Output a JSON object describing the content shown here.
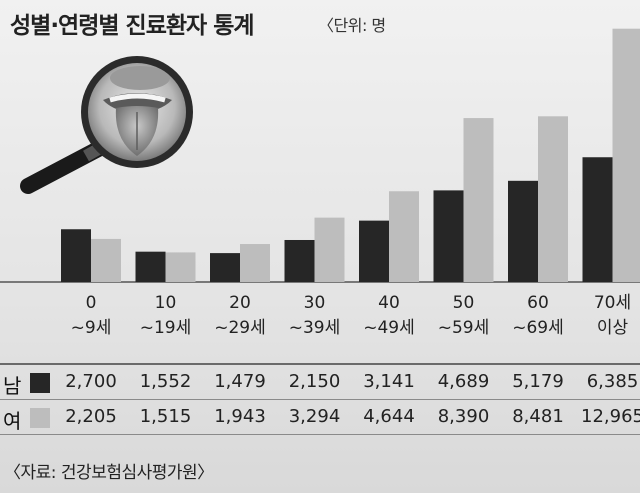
{
  "header": {
    "title": "성별·연령별 진료환자 통계",
    "unit": "〈단위: 명"
  },
  "chart_data": {
    "type": "bar",
    "categories": [
      [
        "0",
        "~9세"
      ],
      [
        "10",
        "~19세"
      ],
      [
        "20",
        "~29세"
      ],
      [
        "30",
        "~39세"
      ],
      [
        "40",
        "~49세"
      ],
      [
        "50",
        "~59세"
      ],
      [
        "60",
        "~69세"
      ],
      [
        "70세",
        "이상"
      ]
    ],
    "series": [
      {
        "name": "남",
        "color": "#262626",
        "values": [
          2700,
          1552,
          1479,
          2150,
          3141,
          4689,
          5179,
          6385
        ]
      },
      {
        "name": "여",
        "color": "#bdbdbd",
        "values": [
          2205,
          1515,
          1943,
          3294,
          4644,
          8390,
          8481,
          12965
        ]
      }
    ],
    "ylim": [
      0,
      13000
    ]
  },
  "table": {
    "rows": [
      {
        "label": "남",
        "color": "#262626",
        "cells": [
          "2,700",
          "1,552",
          "1,479",
          "2,150",
          "3,141",
          "4,689",
          "5,179",
          "6,385"
        ]
      },
      {
        "label": "여",
        "color": "#bdbdbd",
        "cells": [
          "2,205",
          "1,515",
          "1,943",
          "3,294",
          "4,644",
          "8,390",
          "8,481",
          "12,965"
        ]
      }
    ]
  },
  "illustration": {
    "icon": "magnifier-tongue-icon"
  },
  "source": "〈자료: 건강보험심사평가원〉"
}
